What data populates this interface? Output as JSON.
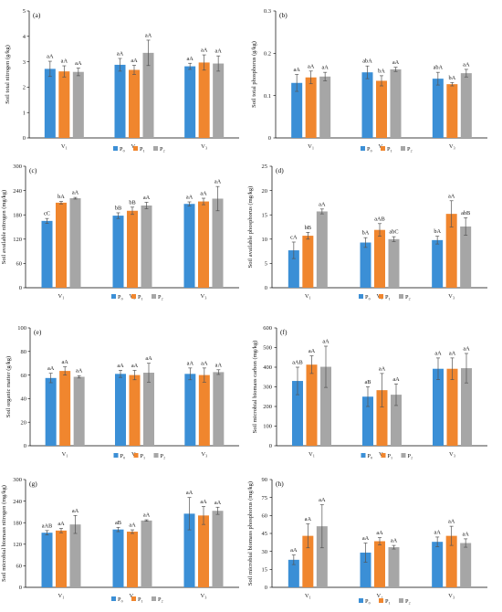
{
  "colors": {
    "P0": "#3b8fd6",
    "P1": "#f0862e",
    "P2": "#a6a6a6",
    "axis": "#000000",
    "err": "#555555"
  },
  "chart_data": [
    {
      "type": "bar",
      "panel_label": "(a)",
      "ylabel": "Soil total nitrogen (g/kg)",
      "ylim": [
        0,
        5
      ],
      "yticks": [
        "0",
        "1",
        "2",
        "3",
        "4",
        "5"
      ],
      "categories": [
        "V₁",
        "V₂",
        "V₃"
      ],
      "series": [
        {
          "name": "P₀",
          "values": [
            2.72,
            2.88,
            2.82
          ],
          "errors": [
            0.3,
            0.25,
            0.12
          ],
          "labels": [
            "aA",
            "aA",
            "aA"
          ]
        },
        {
          "name": "P₁",
          "values": [
            2.62,
            2.68,
            2.97
          ],
          "errors": [
            0.22,
            0.18,
            0.3
          ],
          "labels": [
            "aA",
            "aA",
            "aA"
          ]
        },
        {
          "name": "P₂",
          "values": [
            2.6,
            3.35,
            2.93
          ],
          "errors": [
            0.15,
            0.5,
            0.3
          ],
          "labels": [
            "aA",
            "aA",
            "aA"
          ]
        }
      ],
      "legend": [
        "P₀",
        "P₁",
        "P₂"
      ]
    },
    {
      "type": "bar",
      "panel_label": "(b)",
      "ylabel": "Soil total phosphorus (g/kg)",
      "ylim": [
        0,
        0.3
      ],
      "yticks": [
        "0",
        "0.1",
        "0.2",
        "0.3"
      ],
      "categories": [
        "V₁",
        "V₂",
        "V₃"
      ],
      "series": [
        {
          "name": "P₀",
          "values": [
            0.13,
            0.155,
            0.14
          ],
          "errors": [
            0.02,
            0.015,
            0.015
          ],
          "labels": [
            "aA",
            "abA",
            "abA"
          ]
        },
        {
          "name": "P₁",
          "values": [
            0.143,
            0.135,
            0.127
          ],
          "errors": [
            0.015,
            0.012,
            0.004
          ],
          "labels": [
            "aA",
            "bA",
            "bA"
          ]
        },
        {
          "name": "P₂",
          "values": [
            0.145,
            0.162,
            0.153
          ],
          "errors": [
            0.01,
            0.005,
            0.009
          ],
          "labels": [
            "aA",
            "aA",
            "aA"
          ]
        }
      ],
      "legend": [
        "P₀",
        "P₁",
        "P₂"
      ]
    },
    {
      "type": "bar",
      "panel_label": "(c)",
      "ylabel": "Soil available nitrogen (mg/kg)",
      "ylim": [
        0,
        300
      ],
      "yticks": [
        "0",
        "60",
        "120",
        "180",
        "240",
        "300"
      ],
      "categories": [
        "V₁",
        "V₂",
        "V₃"
      ],
      "series": [
        {
          "name": "P₀",
          "values": [
            165,
            178,
            207
          ],
          "errors": [
            6,
            7,
            5
          ],
          "labels": [
            "cC",
            "bB",
            "aA"
          ]
        },
        {
          "name": "P₁",
          "values": [
            210,
            190,
            213
          ],
          "errors": [
            3,
            9,
            8
          ],
          "labels": [
            "bA",
            "bB",
            "aA"
          ]
        },
        {
          "name": "P₂",
          "values": [
            221,
            203,
            220
          ],
          "errors": [
            2,
            8,
            30
          ],
          "labels": [
            "aA",
            "aA",
            "aA"
          ]
        }
      ],
      "legend": [
        "P₀",
        "P₁",
        "P₂"
      ]
    },
    {
      "type": "bar",
      "panel_label": "(d)",
      "ylabel": "Soil available phosphorus (mg/kg)",
      "ylim": [
        0,
        25
      ],
      "yticks": [
        "0",
        "5",
        "10",
        "15",
        "20",
        "25"
      ],
      "categories": [
        "V₁",
        "V₂",
        "V₃"
      ],
      "series": [
        {
          "name": "P₀",
          "values": [
            7.7,
            9.3,
            9.8
          ],
          "errors": [
            1.7,
            1.0,
            0.8
          ],
          "labels": [
            "cA",
            "bA",
            "bA"
          ]
        },
        {
          "name": "P₁",
          "values": [
            10.7,
            11.9,
            15.2
          ],
          "errors": [
            0.7,
            1.3,
            2.7
          ],
          "labels": [
            "bB",
            "aAB",
            "aA"
          ]
        },
        {
          "name": "P₂",
          "values": [
            15.7,
            10.0,
            12.6
          ],
          "errors": [
            0.5,
            0.5,
            1.8
          ],
          "labels": [
            "aA",
            "abC",
            "abB"
          ]
        }
      ],
      "legend": [
        "P₀",
        "P₁",
        "P₂"
      ]
    },
    {
      "type": "bar",
      "panel_label": "(e)",
      "ylabel": "Soil organic matter (g/kg)",
      "ylim": [
        0,
        100
      ],
      "yticks": [
        "0",
        "20",
        "40",
        "60",
        "80",
        "100"
      ],
      "categories": [
        "V₁",
        "V₂",
        "V₃"
      ],
      "series": [
        {
          "name": "P₀",
          "values": [
            57.5,
            61,
            61
          ],
          "errors": [
            4,
            3,
            5
          ],
          "labels": [
            "aA",
            "aA",
            "aA"
          ]
        },
        {
          "name": "P₁",
          "values": [
            63.5,
            60,
            60
          ],
          "errors": [
            3.5,
            4,
            6
          ],
          "labels": [
            "aA",
            "aA",
            "aA"
          ]
        },
        {
          "name": "P₂",
          "values": [
            58.5,
            62,
            62.5
          ],
          "errors": [
            1,
            8,
            2
          ],
          "labels": [
            "aA",
            "aA",
            "aA"
          ]
        }
      ],
      "legend": [
        "P₀",
        "P₁",
        "P₂"
      ]
    },
    {
      "type": "bar",
      "panel_label": "(f)",
      "ylabel": "Soil microbial biomass carbon (mg/kg)",
      "ylim": [
        0,
        600
      ],
      "yticks": [
        "0",
        "100",
        "200",
        "300",
        "400",
        "500",
        "600"
      ],
      "categories": [
        "V₁",
        "V₂",
        "V₃"
      ],
      "series": [
        {
          "name": "P₀",
          "values": [
            330,
            250,
            392
          ],
          "errors": [
            70,
            50,
            55
          ],
          "labels": [
            "aAB",
            "aB",
            "aA"
          ]
        },
        {
          "name": "P₁",
          "values": [
            413,
            283,
            392
          ],
          "errors": [
            45,
            85,
            55
          ],
          "labels": [
            "aA",
            "aA",
            "aA"
          ]
        },
        {
          "name": "P₂",
          "values": [
            402,
            260,
            395
          ],
          "errors": [
            105,
            55,
            75
          ],
          "labels": [
            "aA",
            "aA",
            "aA"
          ]
        }
      ],
      "legend": [
        "P₀",
        "P₁",
        "P₂"
      ]
    },
    {
      "type": "bar",
      "panel_label": "(g)",
      "ylabel": "Soil microbial biomass nitrogen (mg/kg)",
      "ylim": [
        0,
        300
      ],
      "yticks": [
        "0",
        "60",
        "120",
        "180",
        "240",
        "300"
      ],
      "categories": [
        "V₁",
        "V₂",
        "V₃"
      ],
      "series": [
        {
          "name": "P₀",
          "values": [
            152,
            161,
            205
          ],
          "errors": [
            6,
            6,
            45
          ],
          "labels": [
            "aAB",
            "aB",
            "aA"
          ]
        },
        {
          "name": "P₁",
          "values": [
            158,
            155,
            200
          ],
          "errors": [
            6,
            5,
            25
          ],
          "labels": [
            "aA",
            "aA",
            "aA"
          ]
        },
        {
          "name": "P₂",
          "values": [
            175,
            186,
            213
          ],
          "errors": [
            25,
            2,
            10
          ],
          "labels": [
            "aA",
            "aA",
            "aA"
          ]
        }
      ],
      "legend": [
        "P₀",
        "P₁",
        "P₂"
      ]
    },
    {
      "type": "bar",
      "panel_label": "(h)",
      "ylabel": "Soil microbial biomass phosphorus (mg/kg)",
      "ylim": [
        0,
        90
      ],
      "yticks": [
        "0",
        "15",
        "30",
        "45",
        "60",
        "75",
        "90"
      ],
      "categories": [
        "V₁",
        "V₂",
        "V₃"
      ],
      "series": [
        {
          "name": "P₀",
          "values": [
            23,
            29,
            38
          ],
          "errors": [
            4,
            8,
            4
          ],
          "labels": [
            "aA",
            "aA",
            "aA"
          ]
        },
        {
          "name": "P₁",
          "values": [
            43,
            38.5,
            43
          ],
          "errors": [
            10,
            3,
            8
          ],
          "labels": [
            "aA",
            "aA",
            "aA"
          ]
        },
        {
          "name": "P₂",
          "values": [
            51,
            33.5,
            37
          ],
          "errors": [
            18,
            1.5,
            3.5
          ],
          "labels": [
            "aA",
            "aA",
            "aA"
          ]
        }
      ],
      "legend": [
        "P₀",
        "P₁",
        "P₂"
      ]
    }
  ]
}
